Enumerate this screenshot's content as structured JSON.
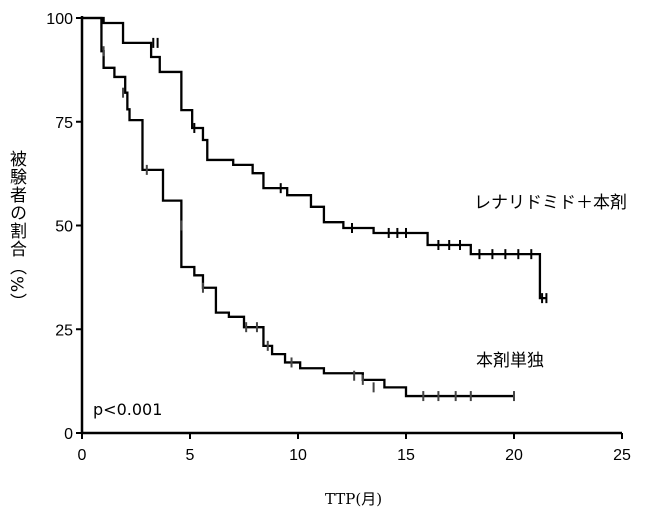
{
  "chart_data": {
    "type": "line",
    "subtype": "kaplan-meier",
    "title": "",
    "xlabel": "TTP(月)",
    "ylabel": "被験者の割合（%）",
    "xlim": [
      0,
      25
    ],
    "ylim": [
      0,
      100
    ],
    "xticks": [
      0,
      5,
      10,
      15,
      20,
      25
    ],
    "yticks": [
      0,
      25,
      50,
      75,
      100
    ],
    "annotation": "p<0.001",
    "series": [
      {
        "name": "レナリドミド＋本剤",
        "color": "#000000",
        "steps": [
          [
            0,
            100
          ],
          [
            1.0,
            98.8
          ],
          [
            1.9,
            94
          ],
          [
            3.2,
            90.6
          ],
          [
            3.6,
            87
          ],
          [
            4.6,
            77.8
          ],
          [
            5.1,
            73.5
          ],
          [
            5.6,
            70.6
          ],
          [
            5.8,
            65.8
          ],
          [
            7.0,
            64.6
          ],
          [
            7.9,
            62.6
          ],
          [
            8.4,
            59
          ],
          [
            9.5,
            57.3
          ],
          [
            10.6,
            54.5
          ],
          [
            11.2,
            50.8
          ],
          [
            12.1,
            49.4
          ],
          [
            13.5,
            48.2
          ],
          [
            16.0,
            45.3
          ],
          [
            18.0,
            43.1
          ],
          [
            21.2,
            32.5
          ],
          [
            21.5,
            32.5
          ]
        ],
        "censored": [
          [
            0.9,
            98.8
          ],
          [
            3.3,
            94
          ],
          [
            3.5,
            94
          ],
          [
            5.2,
            73.5
          ],
          [
            9.2,
            59
          ],
          [
            12.5,
            49.4
          ],
          [
            14.2,
            48.2
          ],
          [
            14.6,
            48.2
          ],
          [
            15.0,
            48.2
          ],
          [
            16.5,
            45.3
          ],
          [
            17.0,
            45.3
          ],
          [
            17.5,
            45.3
          ],
          [
            18.4,
            43.1
          ],
          [
            19.0,
            43.1
          ],
          [
            19.6,
            43.1
          ],
          [
            20.2,
            43.1
          ],
          [
            20.8,
            43.1
          ],
          [
            21.3,
            32.5
          ],
          [
            21.5,
            32.5
          ]
        ]
      },
      {
        "name": "本剤単独",
        "color": "#000000",
        "steps": [
          [
            0,
            100
          ],
          [
            0.9,
            92
          ],
          [
            1.0,
            88
          ],
          [
            1.5,
            85.8
          ],
          [
            2.0,
            82
          ],
          [
            2.1,
            78
          ],
          [
            2.2,
            75.4
          ],
          [
            2.8,
            63.4
          ],
          [
            3.75,
            56
          ],
          [
            4.6,
            40
          ],
          [
            5.2,
            38
          ],
          [
            5.6,
            35
          ],
          [
            6.2,
            29
          ],
          [
            6.8,
            28
          ],
          [
            7.5,
            25.5
          ],
          [
            8.4,
            21
          ],
          [
            8.8,
            19
          ],
          [
            9.4,
            17
          ],
          [
            10.1,
            15.6
          ],
          [
            11.2,
            14.4
          ],
          [
            13.0,
            12.8
          ],
          [
            14.0,
            11
          ],
          [
            15.0,
            8.9
          ],
          [
            20.0,
            8.9
          ]
        ],
        "censored": [
          [
            1.0,
            92
          ],
          [
            1.9,
            82
          ],
          [
            3.0,
            63.4
          ],
          [
            4.6,
            50
          ],
          [
            5.6,
            35
          ],
          [
            7.6,
            25.5
          ],
          [
            8.1,
            25.5
          ],
          [
            8.6,
            21
          ],
          [
            9.7,
            17
          ],
          [
            12.6,
            13.8
          ],
          [
            13.0,
            12.8
          ],
          [
            13.5,
            11
          ],
          [
            15.8,
            8.9
          ],
          [
            16.5,
            8.9
          ],
          [
            17.3,
            8.9
          ],
          [
            18.0,
            8.9
          ],
          [
            20.0,
            8.9
          ]
        ]
      }
    ]
  }
}
